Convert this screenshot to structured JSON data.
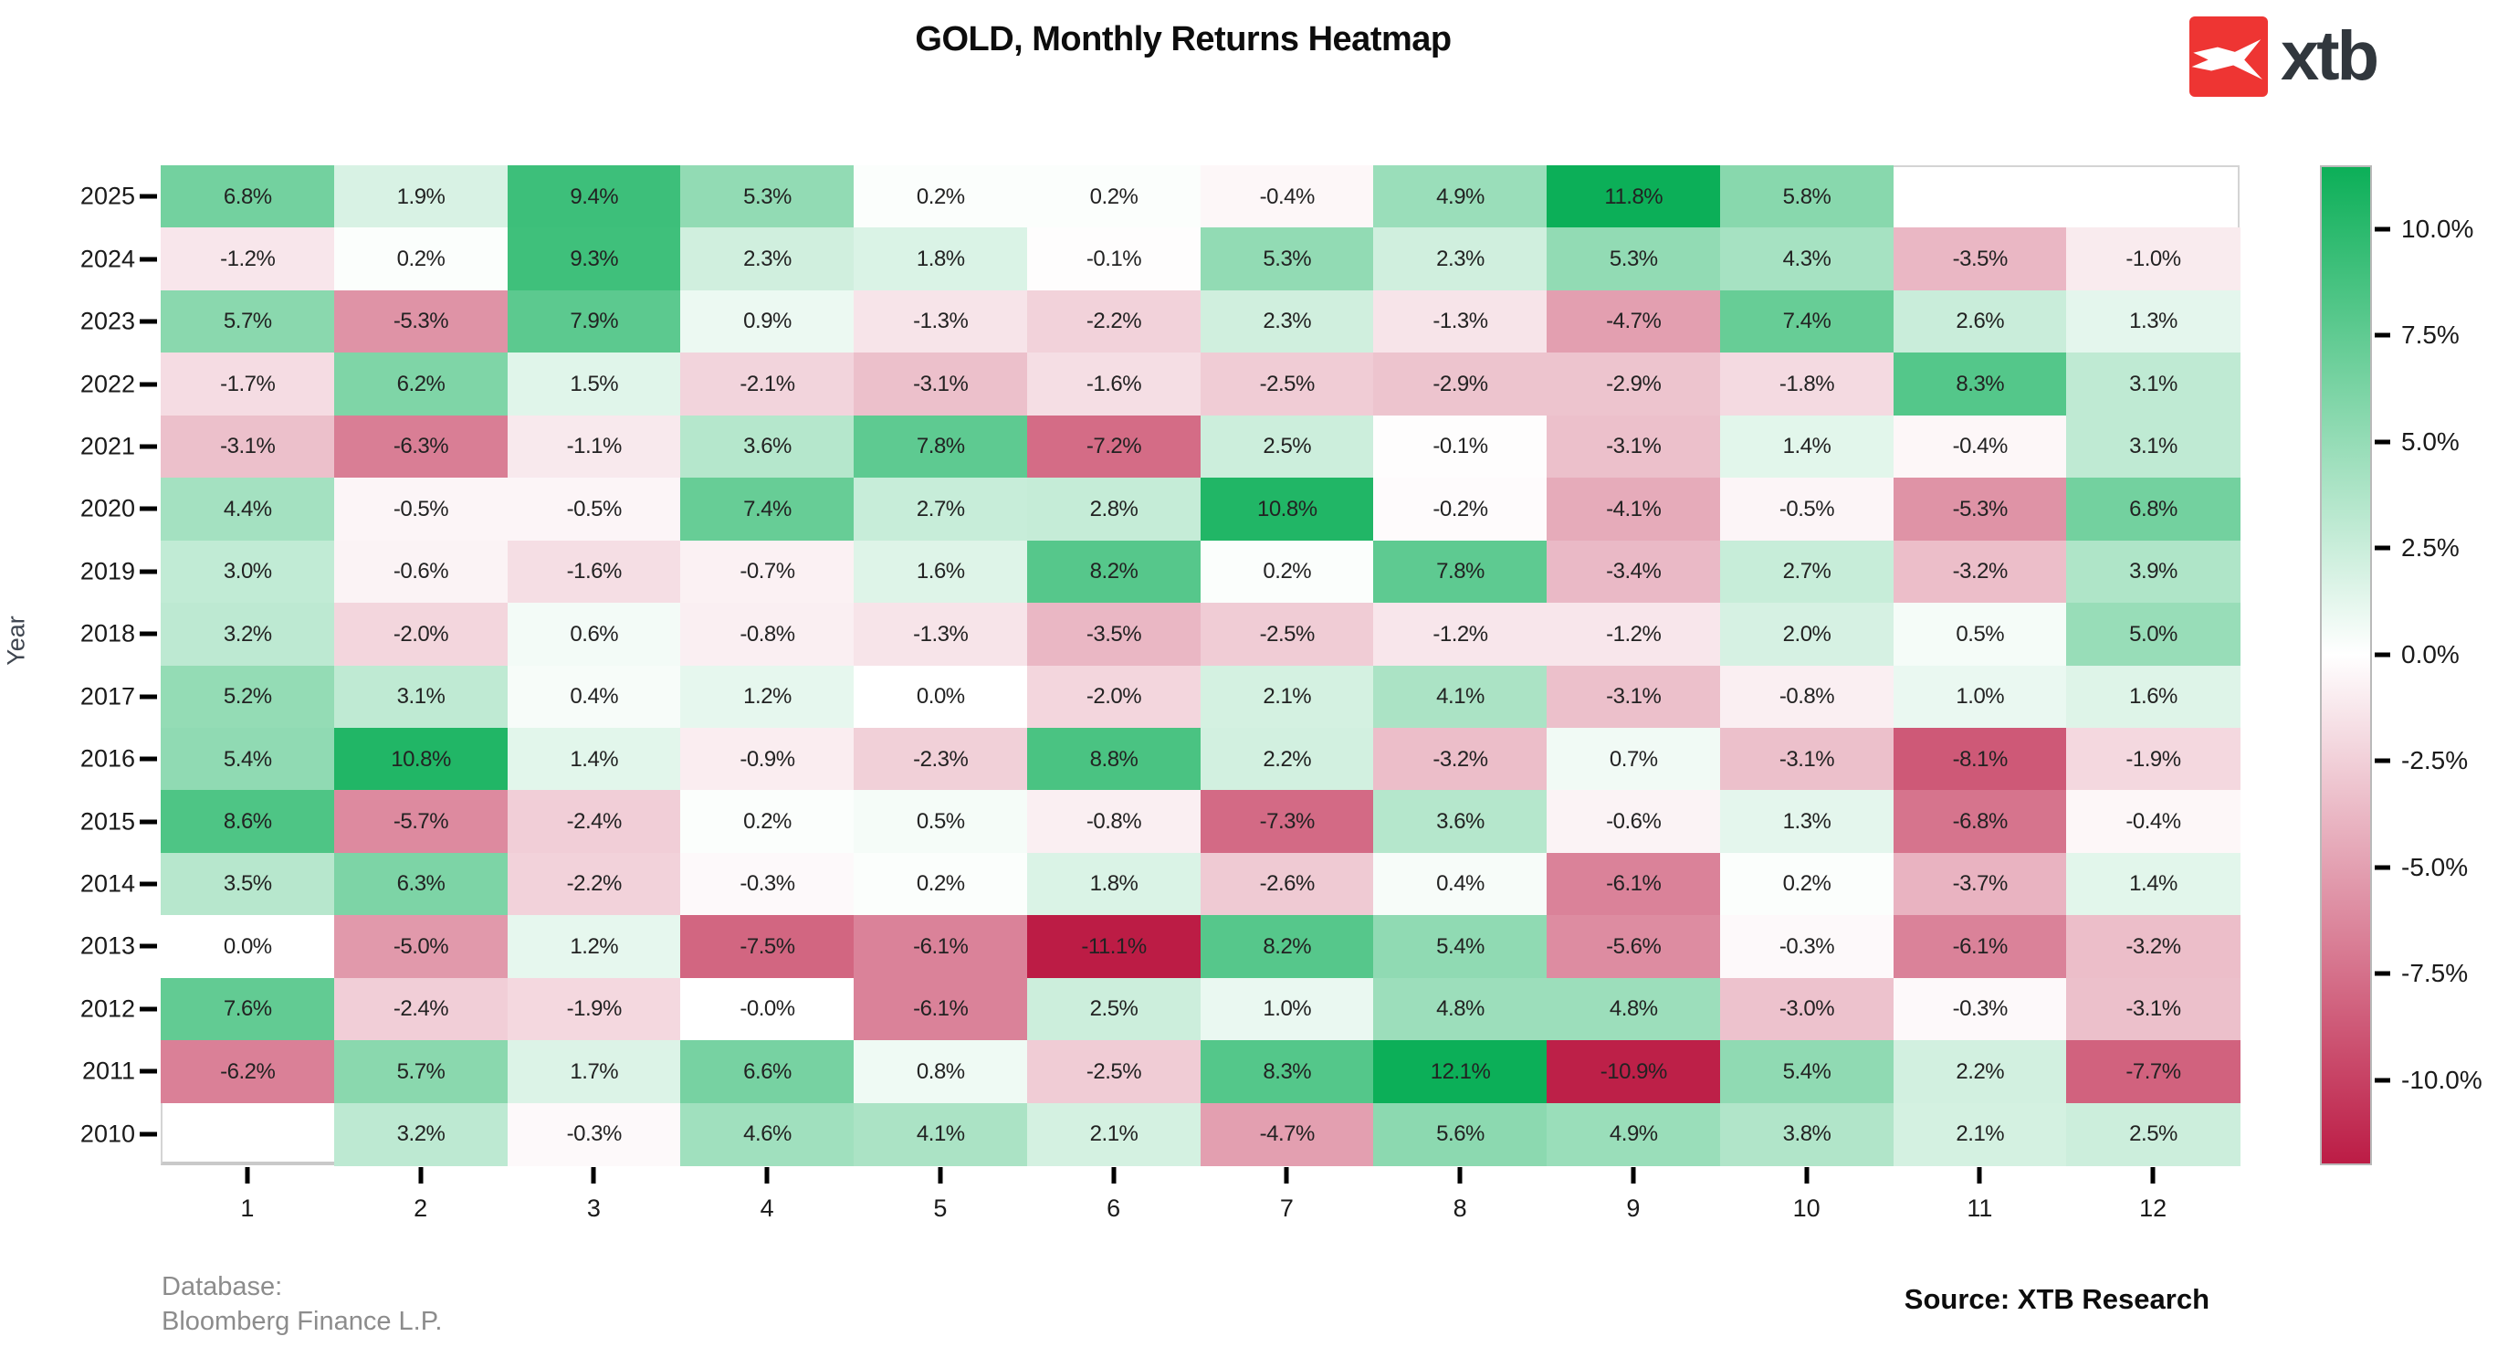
{
  "title": "GOLD, Monthly Returns Heatmap",
  "logo": {
    "brand": "xtb",
    "mark_color": "#ee3533",
    "text_color": "#31373d"
  },
  "ylabel": "Year",
  "footer": {
    "database_line1": "Database:",
    "database_line2": "Bloomberg Finance L.P.",
    "source": "Source: XTB Research"
  },
  "chart_data": {
    "type": "heatmap",
    "title": "GOLD, Monthly Returns Heatmap",
    "xlabel": "",
    "ylabel": "Year",
    "unit": "%",
    "x_labels": [
      "1",
      "2",
      "3",
      "4",
      "5",
      "6",
      "7",
      "8",
      "9",
      "10",
      "11",
      "12"
    ],
    "y_labels": [
      "2025",
      "2024",
      "2023",
      "2022",
      "2021",
      "2020",
      "2019",
      "2018",
      "2017",
      "2016",
      "2015",
      "2014",
      "2013",
      "2012",
      "2011",
      "2010"
    ],
    "rows": [
      [
        "6.8",
        "1.9",
        "9.4",
        "5.3",
        "0.2",
        "0.2",
        "-0.4",
        "4.9",
        "11.8",
        "5.8",
        null,
        null
      ],
      [
        "-1.2",
        "0.2",
        "9.3",
        "2.3",
        "1.8",
        "-0.1",
        "5.3",
        "2.3",
        "5.3",
        "4.3",
        "-3.5",
        "-1.0"
      ],
      [
        "5.7",
        "-5.3",
        "7.9",
        "0.9",
        "-1.3",
        "-2.2",
        "2.3",
        "-1.3",
        "-4.7",
        "7.4",
        "2.6",
        "1.3"
      ],
      [
        "-1.7",
        "6.2",
        "1.5",
        "-2.1",
        "-3.1",
        "-1.6",
        "-2.5",
        "-2.9",
        "-2.9",
        "-1.8",
        "8.3",
        "3.1"
      ],
      [
        "-3.1",
        "-6.3",
        "-1.1",
        "3.6",
        "7.8",
        "-7.2",
        "2.5",
        "-0.1",
        "-3.1",
        "1.4",
        "-0.4",
        "3.1"
      ],
      [
        "4.4",
        "-0.5",
        "-0.5",
        "7.4",
        "2.7",
        "2.8",
        "10.8",
        "-0.2",
        "-4.1",
        "-0.5",
        "-5.3",
        "6.8"
      ],
      [
        "3.0",
        "-0.6",
        "-1.6",
        "-0.7",
        "1.6",
        "8.2",
        "0.2",
        "7.8",
        "-3.4",
        "2.7",
        "-3.2",
        "3.9"
      ],
      [
        "3.2",
        "-2.0",
        "0.6",
        "-0.8",
        "-1.3",
        "-3.5",
        "-2.5",
        "-1.2",
        "-1.2",
        "2.0",
        "0.5",
        "5.0"
      ],
      [
        "5.2",
        "3.1",
        "0.4",
        "1.2",
        "0.0",
        "-2.0",
        "2.1",
        "4.1",
        "-3.1",
        "-0.8",
        "1.0",
        "1.6"
      ],
      [
        "5.4",
        "10.8",
        "1.4",
        "-0.9",
        "-2.3",
        "8.8",
        "2.2",
        "-3.2",
        "0.7",
        "-3.1",
        "-8.1",
        "-1.9"
      ],
      [
        "8.6",
        "-5.7",
        "-2.4",
        "0.2",
        "0.5",
        "-0.8",
        "-7.3",
        "3.6",
        "-0.6",
        "1.3",
        "-6.8",
        "-0.4"
      ],
      [
        "3.5",
        "6.3",
        "-2.2",
        "-0.3",
        "0.2",
        "1.8",
        "-2.6",
        "0.4",
        "-6.1",
        "0.2",
        "-3.7",
        "1.4"
      ],
      [
        "0.0",
        "-5.0",
        "1.2",
        "-7.5",
        "-6.1",
        "-11.1",
        "8.2",
        "5.4",
        "-5.6",
        "-0.3",
        "-6.1",
        "-3.2"
      ],
      [
        "7.6",
        "-2.4",
        "-1.9",
        "-0.0",
        "-6.1",
        "2.5",
        "1.0",
        "4.8",
        "4.8",
        "-3.0",
        "-0.3",
        "-3.1"
      ],
      [
        "-6.2",
        "5.7",
        "1.7",
        "6.6",
        "0.8",
        "-2.5",
        "8.3",
        "12.1",
        "-10.9",
        "5.4",
        "2.2",
        "-7.7"
      ],
      [
        null,
        "3.2",
        "-0.3",
        "4.6",
        "4.1",
        "2.1",
        "-4.7",
        "5.6",
        "4.9",
        "3.8",
        "2.1",
        "2.5"
      ]
    ],
    "colorbar": {
      "tick_labels": [
        "10.0%",
        "7.5%",
        "5.0%",
        "2.5%",
        "0.0%",
        "-2.5%",
        "-5.0%",
        "-7.5%",
        "-10.0%"
      ],
      "tick_values": [
        10,
        7.5,
        5,
        2.5,
        0,
        -2.5,
        -5,
        -7.5,
        -10
      ],
      "vmax": 11.5,
      "vmin": -12.0
    },
    "colors": {
      "positive_end": "#0caf58",
      "negative_end": "#bc1c45",
      "center": "#ffffff",
      "positive_scale": 11.8,
      "negative_scale": 11.1
    },
    "legend_position": "right",
    "grid": false
  }
}
